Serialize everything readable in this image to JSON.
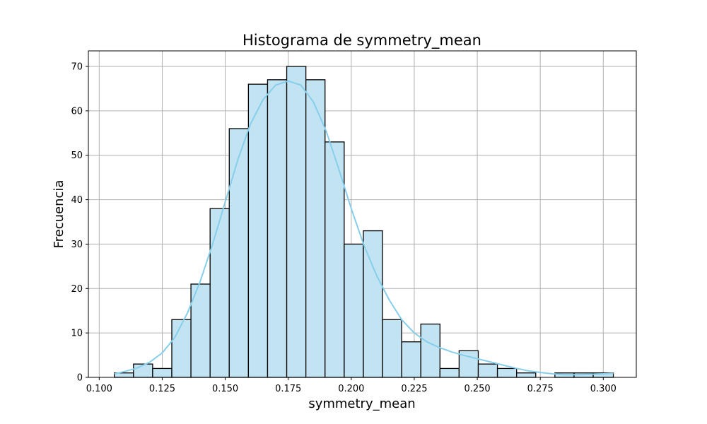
{
  "chart_data": {
    "type": "bar",
    "subtype": "histogram",
    "title": "Histograma de symmetry_mean",
    "xlabel": "symmetry_mean",
    "ylabel": "Frecuencia",
    "xlim": [
      0.0957,
      0.3131
    ],
    "ylim": [
      0,
      73.5
    ],
    "grid": true,
    "bar_color": "#c2e4f2",
    "bar_edge_color": "#000000",
    "kde_color": "#87ceeb",
    "x_ticks": [
      0.1,
      0.125,
      0.15,
      0.175,
      0.2,
      0.225,
      0.25,
      0.275,
      0.3
    ],
    "x_tick_labels": [
      "0.100",
      "0.125",
      "0.150",
      "0.175",
      "0.200",
      "0.225",
      "0.250",
      "0.275",
      "0.300"
    ],
    "y_ticks": [
      0,
      10,
      20,
      30,
      40,
      50,
      60,
      70
    ],
    "y_tick_labels": [
      "0",
      "10",
      "20",
      "30",
      "40",
      "50",
      "60",
      "70"
    ],
    "bin_edges": [
      0.106,
      0.1136,
      0.1212,
      0.1288,
      0.1364,
      0.144,
      0.1516,
      0.1592,
      0.1668,
      0.1744,
      0.182,
      0.1896,
      0.1972,
      0.2048,
      0.2124,
      0.22,
      0.2276,
      0.2352,
      0.2428,
      0.2504,
      0.258,
      0.2656,
      0.2732,
      0.2808,
      0.2884,
      0.296,
      0.304
    ],
    "counts": [
      1,
      3,
      2,
      13,
      21,
      38,
      56,
      66,
      67,
      70,
      67,
      53,
      30,
      33,
      13,
      8,
      12,
      2,
      6,
      3,
      2,
      1,
      0,
      1,
      1,
      1
    ],
    "kde": {
      "x": [
        0.106,
        0.11,
        0.115,
        0.12,
        0.125,
        0.13,
        0.135,
        0.14,
        0.145,
        0.15,
        0.155,
        0.16,
        0.165,
        0.17,
        0.175,
        0.18,
        0.185,
        0.19,
        0.195,
        0.2,
        0.205,
        0.21,
        0.215,
        0.22,
        0.225,
        0.23,
        0.235,
        0.24,
        0.245,
        0.25,
        0.255,
        0.26,
        0.265,
        0.27,
        0.275,
        0.28,
        0.285,
        0.29,
        0.295,
        0.3,
        0.304
      ],
      "y": [
        0.8,
        1.3,
        2.1,
        3.4,
        5.5,
        9.0,
        14.5,
        21.5,
        30.0,
        39.5,
        49.0,
        57.0,
        62.5,
        65.8,
        66.7,
        65.8,
        62.0,
        55.5,
        47.0,
        38.0,
        29.8,
        23.0,
        17.5,
        13.0,
        10.0,
        8.0,
        6.7,
        5.7,
        4.9,
        4.2,
        3.5,
        2.8,
        2.1,
        1.5,
        1.1,
        0.8,
        0.6,
        0.6,
        0.7,
        0.8,
        0.9
      ]
    }
  }
}
